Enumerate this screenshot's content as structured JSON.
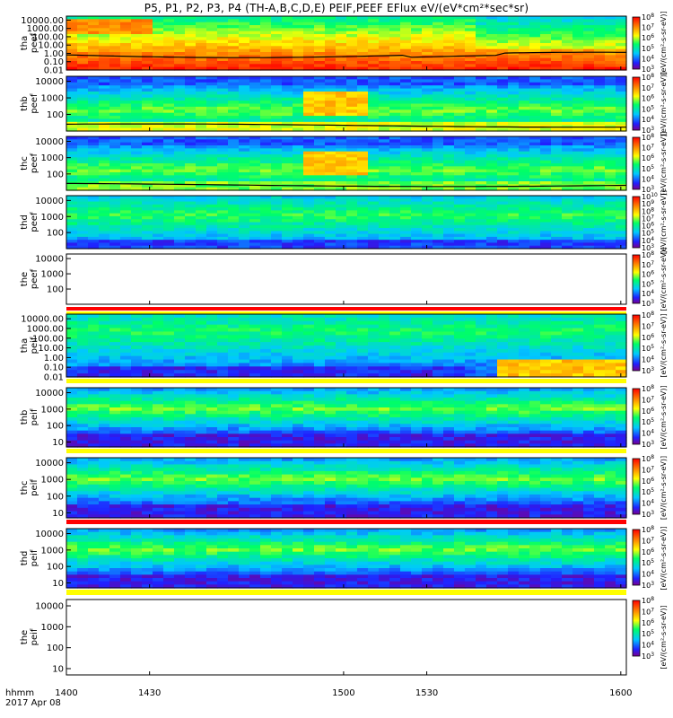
{
  "title": "P5, P1, P2, P3, P4 (TH-A,B,C,D,E) PEIF,PEEF EFlux eV/(eV*cm²*sec*sr)",
  "footer": {
    "time_label": "hhmm",
    "date_label": "2017 Apr 08"
  },
  "colorbar_label": "[eV/(cm²-s-sr-eV)]",
  "chart_data": [
    {
      "type": "heatmap",
      "probe": "tha",
      "instrument": "peef",
      "ylabel": "tha\npeef",
      "yscale": "log",
      "ylim": [
        0.01,
        30000
      ],
      "yticks": [
        "0.01",
        "0.10",
        "1.00",
        "10.00",
        "100.00",
        "1000.00",
        "10000.00"
      ],
      "colorbar": {
        "min_exp": 3,
        "max_exp": 8
      },
      "overlay_line": true,
      "status_bars": [],
      "has_data": true
    },
    {
      "type": "heatmap",
      "probe": "thb",
      "instrument": "peef",
      "ylabel": "thb\npeef",
      "yscale": "log",
      "ylim": [
        10,
        20000
      ],
      "yticks": [
        "100",
        "1000",
        "10000"
      ],
      "colorbar": {
        "min_exp": 3,
        "max_exp": 8
      },
      "overlay_line": true,
      "status_bars": [],
      "has_data": true
    },
    {
      "type": "heatmap",
      "probe": "thc",
      "instrument": "peef",
      "ylabel": "thc\npeef",
      "yscale": "log",
      "ylim": [
        10,
        20000
      ],
      "yticks": [
        "100",
        "1000",
        "10000"
      ],
      "colorbar": {
        "min_exp": 3,
        "max_exp": 8
      },
      "overlay_line": true,
      "status_bars": [],
      "has_data": true
    },
    {
      "type": "heatmap",
      "probe": "thd",
      "instrument": "peef",
      "ylabel": "thd\npeef",
      "yscale": "log",
      "ylim": [
        10,
        20000
      ],
      "yticks": [
        "100",
        "1000",
        "10000"
      ],
      "colorbar": {
        "min_exp": 3,
        "max_exp": 10
      },
      "overlay_line": false,
      "status_bars": [],
      "has_data": true
    },
    {
      "type": "heatmap",
      "probe": "the",
      "instrument": "peef",
      "ylabel": "the\npeef",
      "yscale": "log",
      "ylim": [
        10,
        20000
      ],
      "yticks": [
        "100",
        "1000",
        "10000"
      ],
      "colorbar": {
        "min_exp": 3,
        "max_exp": 8
      },
      "overlay_line": false,
      "status_bars": [
        {
          "color": "#ff0000",
          "x_start": 1400,
          "x_end": 1602
        },
        {
          "color": "#ffff00",
          "x_start": 1400,
          "x_end": 1602
        }
      ],
      "has_data": false
    },
    {
      "type": "heatmap",
      "probe": "tha",
      "instrument": "peif",
      "ylabel": "tha\npeif",
      "yscale": "log",
      "ylim": [
        0.01,
        30000
      ],
      "yticks": [
        "0.01",
        "0.10",
        "1.00",
        "10.00",
        "100.00",
        "1000.00",
        "10000.00"
      ],
      "colorbar": {
        "min_exp": 3,
        "max_exp": 8
      },
      "overlay_line": false,
      "status_bars": [
        {
          "color": "#ffff00",
          "x_start": 1400,
          "x_end": 1602
        }
      ],
      "has_data": true
    },
    {
      "type": "heatmap",
      "probe": "thb",
      "instrument": "peif",
      "ylabel": "thb\npeif",
      "yscale": "log",
      "ylim": [
        5,
        20000
      ],
      "yticks": [
        "10",
        "100",
        "1000",
        "10000"
      ],
      "colorbar": {
        "min_exp": 3,
        "max_exp": 8
      },
      "overlay_line": false,
      "status_bars": [
        {
          "color": "#ffff00",
          "x_start": 1400,
          "x_end": 1602
        }
      ],
      "has_data": true
    },
    {
      "type": "heatmap",
      "probe": "thc",
      "instrument": "peif",
      "ylabel": "thc\npeif",
      "yscale": "log",
      "ylim": [
        5,
        20000
      ],
      "yticks": [
        "10",
        "100",
        "1000",
        "10000"
      ],
      "colorbar": {
        "min_exp": 3,
        "max_exp": 8
      },
      "overlay_line": false,
      "status_bars": [
        {
          "color": "#ff0000",
          "x_start": 1400,
          "x_end": 1602
        }
      ],
      "has_data": true
    },
    {
      "type": "heatmap",
      "probe": "thd",
      "instrument": "peif",
      "ylabel": "thd\npeif",
      "yscale": "log",
      "ylim": [
        5,
        20000
      ],
      "yticks": [
        "10",
        "100",
        "1000",
        "10000"
      ],
      "colorbar": {
        "min_exp": 3,
        "max_exp": 8
      },
      "overlay_line": false,
      "status_bars": [
        {
          "color": "#ffff00",
          "x_start": 1400,
          "x_end": 1602
        }
      ],
      "has_data": true
    },
    {
      "type": "heatmap",
      "probe": "the",
      "instrument": "peif",
      "ylabel": "the\npeif",
      "yscale": "log",
      "ylim": [
        5,
        20000
      ],
      "yticks": [
        "10",
        "100",
        "1000",
        "10000"
      ],
      "colorbar": {
        "min_exp": 3,
        "max_exp": 8
      },
      "overlay_line": false,
      "status_bars": [],
      "has_data": false
    }
  ],
  "xaxis": {
    "range": [
      1400,
      1602
    ],
    "ticks": [
      {
        "value": 1400,
        "label": "1400"
      },
      {
        "value": 1430,
        "label": "1430"
      },
      {
        "value": 1500,
        "label": "1500"
      },
      {
        "value": 1530,
        "label": "1530"
      },
      {
        "value": 1600,
        "label": "1600"
      }
    ]
  }
}
